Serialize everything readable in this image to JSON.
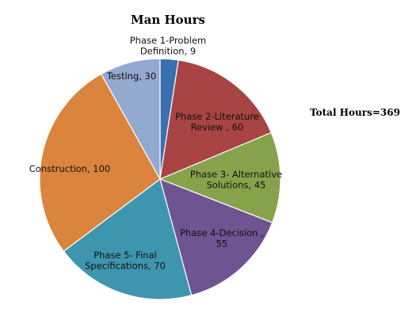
{
  "chart_data": {
    "type": "pie",
    "title": "Man Hours",
    "annotation": "Total Hours=369",
    "slices": [
      {
        "label": "Phase 1-Problem Definition, 9",
        "name": "Phase 1-Problem Definition",
        "value": 9,
        "color": "#3A6FB0"
      },
      {
        "label": "Phase 2-Literature Review , 60",
        "name": "Phase 2-Literature Review",
        "value": 60,
        "color": "#A84444"
      },
      {
        "label": "Phase 3- Alternative Solutions, 45",
        "name": "Phase 3- Alternative Solutions",
        "value": 45,
        "color": "#86A34C"
      },
      {
        "label": "Phase 4-Decision , 55",
        "name": "Phase 4-Decision",
        "value": 55,
        "color": "#6E5490"
      },
      {
        "label": "Phase 5- Final Specifications, 70",
        "name": "Phase 5- Final Specifications",
        "value": 70,
        "color": "#3D96AE"
      },
      {
        "label": "Construction, 100",
        "name": "Construction",
        "value": 100,
        "color": "#DB843D"
      },
      {
        "label": "Testing, 30",
        "name": "Testing",
        "value": 30,
        "color": "#93A9CF"
      }
    ]
  }
}
